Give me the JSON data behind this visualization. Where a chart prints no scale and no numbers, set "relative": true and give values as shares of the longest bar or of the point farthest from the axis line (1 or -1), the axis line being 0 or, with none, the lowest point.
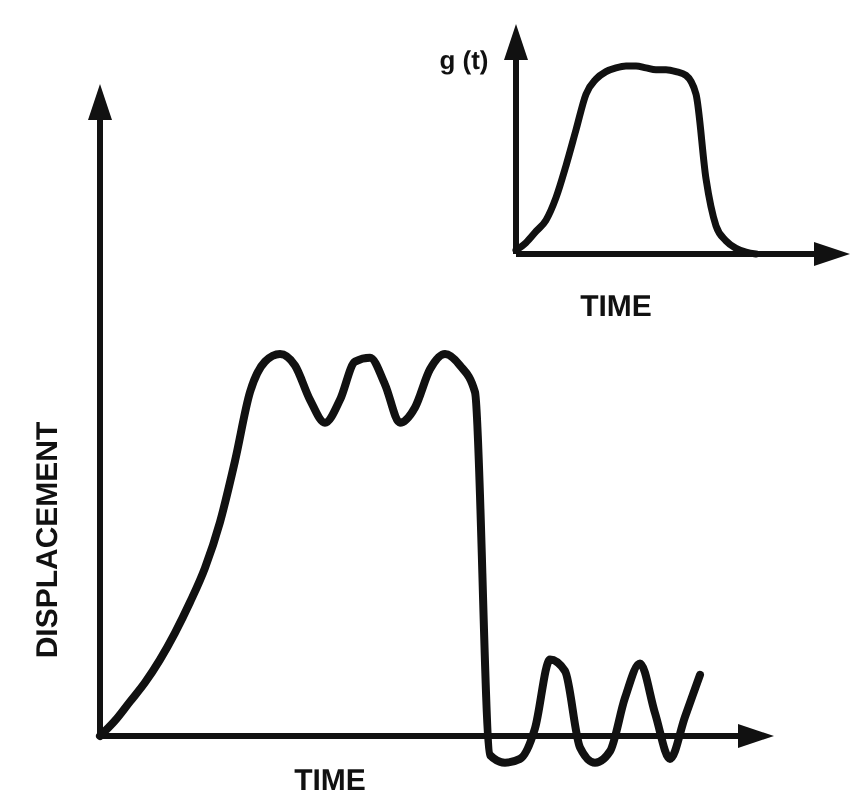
{
  "chart_data": [
    {
      "type": "line",
      "relative": true,
      "xlabel": "TIME",
      "ylabel": "DISPLACEMENT",
      "marker": "none",
      "line_style": "solid",
      "categories": [
        null,
        null,
        null,
        null,
        null,
        null,
        null,
        null,
        null,
        null,
        null,
        null,
        null,
        null,
        null,
        null,
        null,
        null,
        null,
        null,
        null,
        null,
        null,
        null,
        null,
        null,
        null,
        null,
        null,
        null,
        null,
        null,
        null,
        null,
        null,
        null,
        null,
        null,
        null,
        null,
        null
      ],
      "series": [
        {
          "color": "#111111",
          "values": [
            0,
            0.04,
            0.09,
            0.14,
            0.2,
            0.27,
            0.35,
            0.44,
            0.56,
            0.72,
            0.9,
            0.98,
            1,
            0.97,
            0.88,
            0.82,
            0.88,
            0.98,
            0.99,
            0.92,
            0.82,
            0.86,
            0.96,
            1,
            0.97,
            0.9,
            -0.05,
            -0.07,
            -0.06,
            0.02,
            0.2,
            0.17,
            -0.03,
            -0.07,
            -0.04,
            0.1,
            0.19,
            0.06,
            -0.06,
            0.05,
            0.16
          ]
        }
      ]
    },
    {
      "type": "line",
      "relative": true,
      "xlabel": "TIME",
      "ylabel": "g (t)",
      "marker": "none",
      "line_style": "solid",
      "categories": [
        null,
        null,
        null,
        null,
        null,
        null,
        null,
        null,
        null,
        null,
        null,
        null,
        null,
        null,
        null,
        null,
        null,
        null,
        null,
        null,
        null,
        null,
        null,
        null,
        null
      ],
      "series": [
        {
          "color": "#111111",
          "values": [
            0.02,
            0.06,
            0.12,
            0.18,
            0.3,
            0.47,
            0.66,
            0.85,
            0.93,
            0.97,
            0.99,
            1,
            1,
            0.99,
            0.98,
            0.98,
            0.97,
            0.95,
            0.85,
            0.4,
            0.15,
            0.07,
            0.03,
            0.01,
            0
          ]
        }
      ]
    }
  ]
}
